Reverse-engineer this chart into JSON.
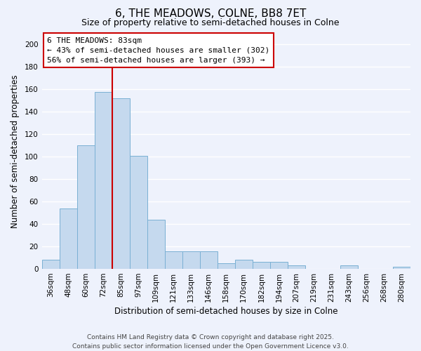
{
  "title": "6, THE MEADOWS, COLNE, BB8 7ET",
  "subtitle": "Size of property relative to semi-detached houses in Colne",
  "xlabel": "Distribution of semi-detached houses by size in Colne",
  "ylabel": "Number of semi-detached properties",
  "categories": [
    "36sqm",
    "48sqm",
    "60sqm",
    "72sqm",
    "85sqm",
    "97sqm",
    "109sqm",
    "121sqm",
    "133sqm",
    "146sqm",
    "158sqm",
    "170sqm",
    "182sqm",
    "194sqm",
    "207sqm",
    "219sqm",
    "231sqm",
    "243sqm",
    "256sqm",
    "268sqm",
    "280sqm"
  ],
  "values": [
    8,
    54,
    110,
    158,
    152,
    101,
    44,
    16,
    16,
    16,
    5,
    8,
    6,
    6,
    3,
    0,
    0,
    3,
    0,
    0,
    2
  ],
  "bar_color": "#c5d9ee",
  "bar_edge_color": "#7ab0d4",
  "vline_index": 3.5,
  "annotation_title": "6 THE MEADOWS: 83sqm",
  "annotation_line1": "← 43% of semi-detached houses are smaller (302)",
  "annotation_line2": "56% of semi-detached houses are larger (393) →",
  "annotation_box_facecolor": "white",
  "annotation_box_edgecolor": "#cc0000",
  "vline_color": "#cc0000",
  "ylim": [
    0,
    210
  ],
  "yticks": [
    0,
    20,
    40,
    60,
    80,
    100,
    120,
    140,
    160,
    180,
    200
  ],
  "bg_color": "#eef2fc",
  "grid_color": "#ffffff",
  "footer_line1": "Contains HM Land Registry data © Crown copyright and database right 2025.",
  "footer_line2": "Contains public sector information licensed under the Open Government Licence v3.0.",
  "title_fontsize": 11,
  "subtitle_fontsize": 9,
  "xlabel_fontsize": 8.5,
  "ylabel_fontsize": 8.5,
  "tick_fontsize": 7.5,
  "footer_fontsize": 6.5,
  "annotation_fontsize": 8
}
